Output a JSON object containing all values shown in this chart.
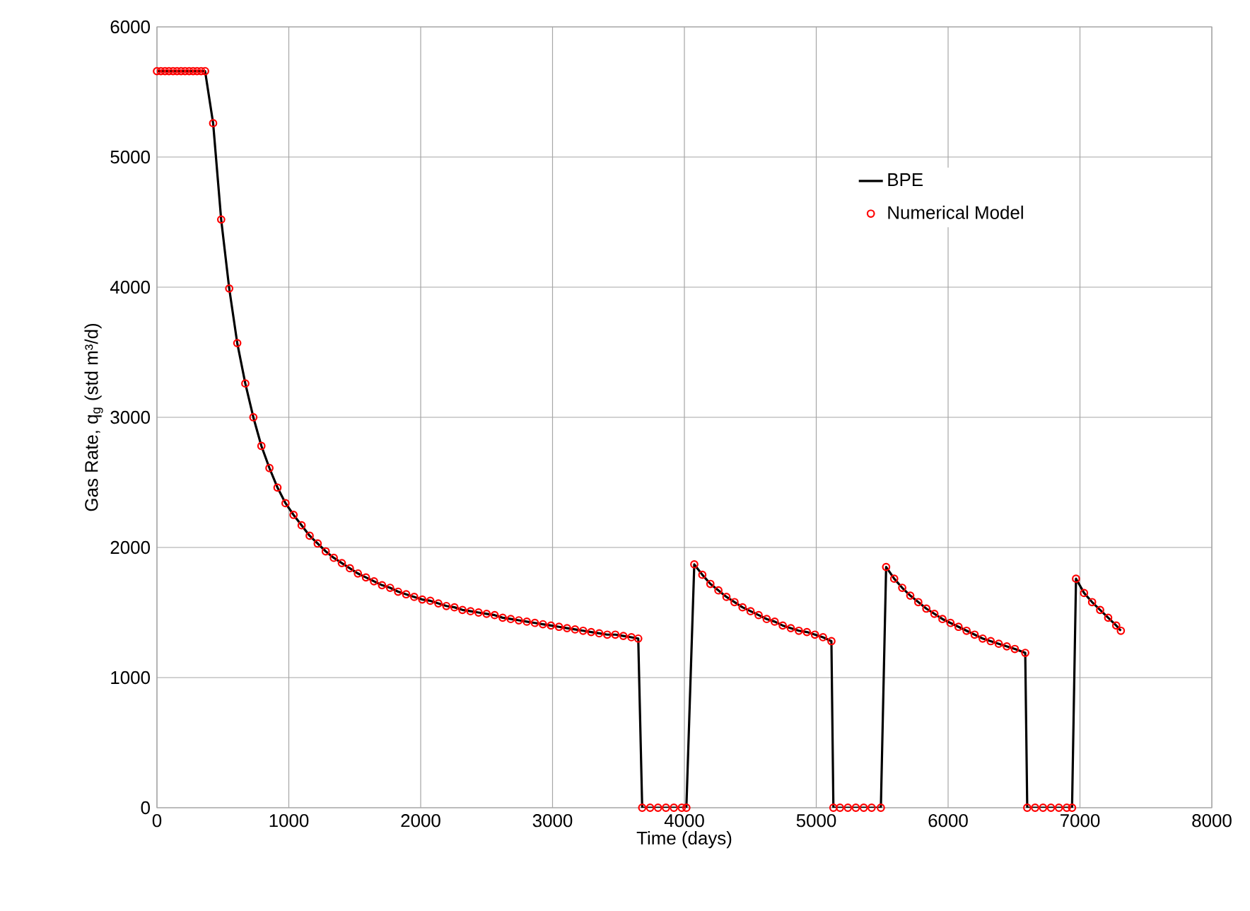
{
  "chart_data": {
    "type": "line",
    "xlabel": "Time (days)",
    "ylabel": "Gas Rate, q$_{g}$ (std m³/d)",
    "x": [
      0,
      30,
      61,
      91,
      122,
      152,
      183,
      213,
      244,
      274,
      304,
      335,
      365,
      426,
      487,
      548,
      609,
      670,
      731,
      792,
      853,
      914,
      975,
      1036,
      1097,
      1158,
      1219,
      1280,
      1341,
      1402,
      1463,
      1524,
      1585,
      1646,
      1707,
      1768,
      1829,
      1890,
      1951,
      2012,
      2073,
      2134,
      2195,
      2256,
      2317,
      2378,
      2439,
      2500,
      2561,
      2622,
      2683,
      2744,
      2805,
      2866,
      2927,
      2988,
      3049,
      3110,
      3171,
      3232,
      3293,
      3354,
      3415,
      3476,
      3537,
      3598,
      3650,
      3680,
      3740,
      3800,
      3860,
      3920,
      3980,
      4015,
      4075,
      4136,
      4197,
      4258,
      4319,
      4380,
      4441,
      4502,
      4563,
      4624,
      4685,
      4746,
      4807,
      4868,
      4929,
      4990,
      5051,
      5115,
      5130,
      5180,
      5240,
      5300,
      5360,
      5420,
      5490,
      5530,
      5591,
      5652,
      5713,
      5774,
      5835,
      5896,
      5957,
      6018,
      6079,
      6140,
      6201,
      6262,
      6323,
      6384,
      6445,
      6506,
      6585,
      6600,
      6660,
      6720,
      6780,
      6840,
      6900,
      6940,
      6970,
      7031,
      7092,
      7153,
      7214,
      7275,
      7310
    ],
    "series": [
      {
        "name": "BPE",
        "color": "#000000",
        "marker": "none",
        "values": [
          5660,
          5660,
          5660,
          5660,
          5660,
          5660,
          5660,
          5660,
          5660,
          5660,
          5660,
          5660,
          5660,
          5260,
          4520,
          3990,
          3570,
          3260,
          3000,
          2780,
          2610,
          2460,
          2340,
          2250,
          2170,
          2090,
          2030,
          1970,
          1920,
          1880,
          1840,
          1800,
          1770,
          1740,
          1710,
          1690,
          1660,
          1640,
          1620,
          1600,
          1590,
          1570,
          1550,
          1540,
          1520,
          1510,
          1500,
          1490,
          1480,
          1460,
          1450,
          1440,
          1430,
          1420,
          1410,
          1400,
          1390,
          1380,
          1370,
          1360,
          1350,
          1340,
          1330,
          1330,
          1320,
          1310,
          1300,
          0,
          0,
          0,
          0,
          0,
          0,
          0,
          1870,
          1790,
          1720,
          1670,
          1620,
          1580,
          1540,
          1510,
          1480,
          1450,
          1430,
          1400,
          1380,
          1360,
          1350,
          1330,
          1310,
          1280,
          0,
          0,
          0,
          0,
          0,
          0,
          0,
          1850,
          1760,
          1690,
          1630,
          1580,
          1530,
          1490,
          1450,
          1420,
          1390,
          1360,
          1330,
          1300,
          1280,
          1260,
          1240,
          1220,
          1190,
          0,
          0,
          0,
          0,
          0,
          0,
          0,
          1760,
          1650,
          1580,
          1520,
          1460,
          1400,
          1360
        ]
      },
      {
        "name": "Numerical Model",
        "type": "scatter",
        "color": "#ff0000",
        "marker": "circle",
        "values": [
          5660,
          5660,
          5660,
          5660,
          5660,
          5660,
          5660,
          5660,
          5660,
          5660,
          5660,
          5660,
          5660,
          5260,
          4520,
          3990,
          3570,
          3260,
          3000,
          2780,
          2610,
          2460,
          2340,
          2250,
          2170,
          2090,
          2030,
          1970,
          1920,
          1880,
          1840,
          1800,
          1770,
          1740,
          1710,
          1690,
          1660,
          1640,
          1620,
          1600,
          1590,
          1570,
          1550,
          1540,
          1520,
          1510,
          1500,
          1490,
          1480,
          1460,
          1450,
          1440,
          1430,
          1420,
          1410,
          1400,
          1390,
          1380,
          1370,
          1360,
          1350,
          1340,
          1330,
          1330,
          1320,
          1310,
          1300,
          0,
          0,
          0,
          0,
          0,
          0,
          0,
          1870,
          1790,
          1720,
          1670,
          1620,
          1580,
          1540,
          1510,
          1480,
          1450,
          1430,
          1400,
          1380,
          1360,
          1350,
          1330,
          1310,
          1280,
          0,
          0,
          0,
          0,
          0,
          0,
          0,
          1850,
          1760,
          1690,
          1630,
          1580,
          1530,
          1490,
          1450,
          1420,
          1390,
          1360,
          1330,
          1300,
          1280,
          1260,
          1240,
          1220,
          1190,
          0,
          0,
          0,
          0,
          0,
          0,
          0,
          1760,
          1650,
          1580,
          1520,
          1460,
          1400,
          1360
        ]
      }
    ],
    "xlim": [
      0,
      8000
    ],
    "ylim": [
      0,
      6000
    ],
    "xticks": [
      0,
      1000,
      2000,
      3000,
      4000,
      5000,
      6000,
      7000,
      8000
    ],
    "yticks": [
      0,
      1000,
      2000,
      3000,
      4000,
      5000,
      6000
    ],
    "grid": true,
    "legend": "top right"
  }
}
